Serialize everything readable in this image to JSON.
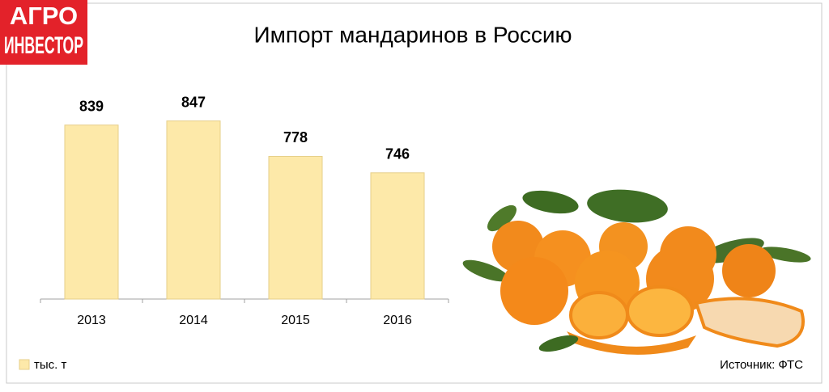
{
  "logo": {
    "line1": "АГРО",
    "line2": "ИНВЕСТОР"
  },
  "chart_data": {
    "type": "bar",
    "title": "Импорт мандаринов в Россию",
    "categories": [
      "2013",
      "2014",
      "2015",
      "2016"
    ],
    "series": [
      {
        "name": "тыс. т",
        "color": "#fde9a9",
        "values": [
          839,
          847,
          778,
          746
        ]
      }
    ],
    "ylim": [
      500,
      900
    ],
    "grid": false,
    "legend": "bottom-left",
    "source": "Источник: ФТС"
  }
}
